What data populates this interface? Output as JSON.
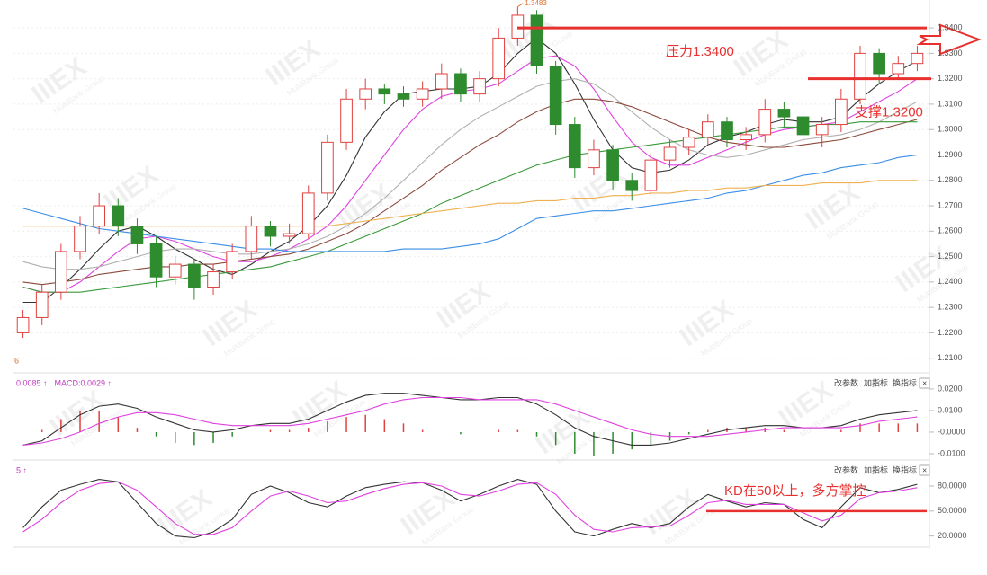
{
  "chart_data": [
    {
      "type": "candlestick",
      "corner_label": "6",
      "max_label": "1.3483",
      "up_color": "#e0403f",
      "down_color": "#2e8b2e",
      "grid": true,
      "ylim": [
        1.206,
        1.351
      ],
      "yticks": [
        {
          "value": 1.34,
          "label": "1.3400"
        },
        {
          "value": 1.33,
          "label": "1.3300"
        },
        {
          "value": 1.32,
          "label": "1.3200"
        },
        {
          "value": 1.31,
          "label": "1.3100"
        },
        {
          "value": 1.3,
          "label": "1.3000"
        },
        {
          "value": 1.29,
          "label": "1.2900"
        },
        {
          "value": 1.28,
          "label": "1.2800"
        },
        {
          "value": 1.27,
          "label": "1.2700"
        },
        {
          "value": 1.26,
          "label": "1.2600"
        },
        {
          "value": 1.25,
          "label": "1.2500"
        },
        {
          "value": 1.24,
          "label": "1.2400"
        },
        {
          "value": 1.23,
          "label": "1.2300"
        },
        {
          "value": 1.22,
          "label": "1.2200"
        },
        {
          "value": 1.21,
          "label": "1.2100"
        }
      ],
      "open": [
        1.22,
        1.226,
        1.236,
        1.252,
        1.262,
        1.27,
        1.262,
        1.255,
        1.242,
        1.247,
        1.238,
        1.244,
        1.252,
        1.262,
        1.258,
        1.259,
        1.275,
        1.295,
        1.312,
        1.316,
        1.314,
        1.312,
        1.316,
        1.322,
        1.314,
        1.32,
        1.336,
        1.345,
        1.325,
        1.302,
        1.285,
        1.292,
        1.28,
        1.276,
        1.288,
        1.293,
        1.297,
        1.303,
        1.296,
        1.298,
        1.308,
        1.305,
        1.298,
        1.302,
        1.312,
        1.33,
        1.322,
        1.326
      ],
      "high": [
        1.229,
        1.239,
        1.255,
        1.266,
        1.275,
        1.273,
        1.265,
        1.258,
        1.25,
        1.249,
        1.247,
        1.255,
        1.266,
        1.264,
        1.263,
        1.278,
        1.298,
        1.316,
        1.32,
        1.318,
        1.317,
        1.319,
        1.326,
        1.324,
        1.323,
        1.34,
        1.3483,
        1.347,
        1.327,
        1.305,
        1.296,
        1.294,
        1.283,
        1.291,
        1.296,
        1.3,
        1.306,
        1.305,
        1.301,
        1.312,
        1.311,
        1.307,
        1.305,
        1.316,
        1.333,
        1.332,
        1.329,
        1.333
      ],
      "low": [
        1.218,
        1.223,
        1.233,
        1.249,
        1.259,
        1.258,
        1.251,
        1.238,
        1.239,
        1.233,
        1.235,
        1.241,
        1.249,
        1.254,
        1.255,
        1.257,
        1.272,
        1.292,
        1.308,
        1.31,
        1.309,
        1.309,
        1.312,
        1.311,
        1.311,
        1.317,
        1.333,
        1.322,
        1.298,
        1.281,
        1.282,
        1.276,
        1.272,
        1.274,
        1.285,
        1.29,
        1.294,
        1.293,
        1.292,
        1.295,
        1.301,
        1.295,
        1.293,
        1.299,
        1.31,
        1.318,
        1.32,
        1.323
      ],
      "close": [
        1.226,
        1.236,
        1.252,
        1.262,
        1.27,
        1.262,
        1.255,
        1.242,
        1.247,
        1.238,
        1.244,
        1.252,
        1.262,
        1.258,
        1.259,
        1.275,
        1.295,
        1.312,
        1.316,
        1.314,
        1.312,
        1.316,
        1.322,
        1.314,
        1.32,
        1.336,
        1.345,
        1.325,
        1.302,
        1.285,
        1.292,
        1.28,
        1.276,
        1.288,
        1.293,
        1.297,
        1.303,
        1.296,
        1.298,
        1.308,
        1.305,
        1.298,
        1.302,
        1.312,
        1.33,
        1.322,
        1.326,
        1.33
      ],
      "series": [
        {
          "color": "#333333",
          "values": [
            1.232,
            1.232,
            1.238,
            1.245,
            1.253,
            1.26,
            1.262,
            1.258,
            1.253,
            1.249,
            1.245,
            1.243,
            1.247,
            1.252,
            1.256,
            1.262,
            1.27,
            1.282,
            1.297,
            1.307,
            1.314,
            1.315,
            1.316,
            1.316,
            1.317,
            1.322,
            1.33,
            1.336,
            1.33,
            1.318,
            1.304,
            1.292,
            1.285,
            1.283,
            1.284,
            1.288,
            1.294,
            1.297,
            1.299,
            1.302,
            1.304,
            1.303,
            1.303,
            1.305,
            1.312,
            1.318,
            1.323,
            1.327
          ]
        },
        {
          "color": "#e040e0",
          "values": [
            1.238,
            1.236,
            1.236,
            1.24,
            1.246,
            1.252,
            1.257,
            1.258,
            1.256,
            1.253,
            1.25,
            1.248,
            1.248,
            1.25,
            1.253,
            1.257,
            1.262,
            1.27,
            1.28,
            1.29,
            1.3,
            1.308,
            1.313,
            1.315,
            1.316,
            1.318,
            1.323,
            1.328,
            1.329,
            1.325,
            1.316,
            1.305,
            1.295,
            1.289,
            1.286,
            1.286,
            1.289,
            1.292,
            1.295,
            1.298,
            1.3,
            1.301,
            1.302,
            1.303,
            1.307,
            1.311,
            1.315,
            1.32
          ]
        },
        {
          "color": "#b0b0b0",
          "values": [
            1.248,
            1.246,
            1.245,
            1.245,
            1.246,
            1.248,
            1.25,
            1.252,
            1.253,
            1.253,
            1.252,
            1.251,
            1.251,
            1.252,
            1.253,
            1.255,
            1.258,
            1.262,
            1.267,
            1.273,
            1.28,
            1.287,
            1.294,
            1.3,
            1.305,
            1.309,
            1.313,
            1.317,
            1.319,
            1.32,
            1.318,
            1.313,
            1.307,
            1.301,
            1.296,
            1.292,
            1.29,
            1.289,
            1.29,
            1.292,
            1.294,
            1.296,
            1.297,
            1.298,
            1.3,
            1.303,
            1.307,
            1.311
          ]
        },
        {
          "color": "#8b4a3c",
          "values": [
            1.24,
            1.239,
            1.24,
            1.241,
            1.243,
            1.244,
            1.245,
            1.246,
            1.246,
            1.247,
            1.247,
            1.248,
            1.249,
            1.25,
            1.251,
            1.253,
            1.256,
            1.259,
            1.263,
            1.268,
            1.273,
            1.278,
            1.284,
            1.289,
            1.294,
            1.298,
            1.303,
            1.307,
            1.31,
            1.312,
            1.312,
            1.311,
            1.309,
            1.306,
            1.303,
            1.3,
            1.297,
            1.295,
            1.294,
            1.293,
            1.293,
            1.294,
            1.295,
            1.296,
            1.298,
            1.3,
            1.302,
            1.304
          ]
        },
        {
          "color": "#3a9a3a",
          "values": [
            1.238,
            1.236,
            1.236,
            1.236,
            1.237,
            1.238,
            1.239,
            1.24,
            1.241,
            1.242,
            1.243,
            1.244,
            1.245,
            1.246,
            1.248,
            1.25,
            1.252,
            1.255,
            1.258,
            1.261,
            1.264,
            1.267,
            1.271,
            1.274,
            1.277,
            1.28,
            1.283,
            1.286,
            1.288,
            1.29,
            1.291,
            1.292,
            1.293,
            1.294,
            1.295,
            1.296,
            1.297,
            1.298,
            1.299,
            1.3,
            1.301,
            1.301,
            1.302,
            1.302,
            1.303,
            1.303,
            1.303,
            1.303
          ]
        },
        {
          "color": "#3a8ee6",
          "values": [
            1.269,
            1.267,
            1.265,
            1.263,
            1.261,
            1.26,
            1.259,
            1.258,
            1.257,
            1.256,
            1.255,
            1.254,
            1.253,
            1.253,
            1.252,
            1.252,
            1.252,
            1.252,
            1.252,
            1.252,
            1.253,
            1.253,
            1.253,
            1.254,
            1.255,
            1.257,
            1.261,
            1.265,
            1.266,
            1.267,
            1.268,
            1.268,
            1.269,
            1.27,
            1.271,
            1.272,
            1.273,
            1.275,
            1.276,
            1.278,
            1.28,
            1.282,
            1.283,
            1.285,
            1.286,
            1.287,
            1.289,
            1.29
          ]
        },
        {
          "color": "#f0b050",
          "values": [
            1.262,
            1.262,
            1.262,
            1.262,
            1.262,
            1.262,
            1.262,
            1.262,
            1.262,
            1.262,
            1.262,
            1.262,
            1.262,
            1.262,
            1.262,
            1.262,
            1.262,
            1.263,
            1.264,
            1.265,
            1.266,
            1.267,
            1.268,
            1.269,
            1.27,
            1.271,
            1.271,
            1.272,
            1.272,
            1.273,
            1.273,
            1.274,
            1.274,
            1.275,
            1.275,
            1.276,
            1.276,
            1.277,
            1.277,
            1.278,
            1.278,
            1.278,
            1.279,
            1.279,
            1.279,
            1.28,
            1.28,
            1.28
          ]
        }
      ],
      "resistance": {
        "value": 1.34,
        "label": "压力1.3400",
        "color": "#e8312f"
      },
      "support": {
        "value": 1.32,
        "label": "支撑1.3200",
        "color": "#e8312f"
      }
    },
    {
      "type": "macd",
      "header": [
        "0.0085 ↑",
        "MACD:0.0029 ↑"
      ],
      "buttons": [
        "改参数",
        "加指标",
        "换指标",
        "×"
      ],
      "ylim": [
        -0.0121,
        0.0233
      ],
      "yticks": [
        {
          "value": 0.02,
          "label": "0.0200"
        },
        {
          "value": 0.01,
          "label": "0.0100"
        },
        {
          "value": 0,
          "label": "-0.0000"
        },
        {
          "value": -0.01,
          "label": "-0.0100"
        }
      ],
      "series": [
        {
          "color": "#333333",
          "values": [
            -0.006,
            -0.004,
            0.002,
            0.008,
            0.012,
            0.013,
            0.011,
            0.007,
            0.004,
            0.001,
            0.0,
            0.001,
            0.003,
            0.004,
            0.004,
            0.006,
            0.01,
            0.014,
            0.017,
            0.018,
            0.018,
            0.017,
            0.016,
            0.015,
            0.015,
            0.016,
            0.016,
            0.013,
            0.008,
            0.002,
            -0.002,
            -0.004,
            -0.006,
            -0.006,
            -0.005,
            -0.003,
            -0.001,
            0.001,
            0.002,
            0.003,
            0.003,
            0.002,
            0.002,
            0.003,
            0.006,
            0.008,
            0.009,
            0.01
          ]
        },
        {
          "color": "#e040e0",
          "values": [
            -0.006,
            -0.005,
            -0.003,
            0.0,
            0.004,
            0.007,
            0.009,
            0.009,
            0.008,
            0.006,
            0.004,
            0.003,
            0.003,
            0.003,
            0.003,
            0.004,
            0.006,
            0.008,
            0.01,
            0.013,
            0.015,
            0.016,
            0.016,
            0.016,
            0.015,
            0.015,
            0.015,
            0.015,
            0.013,
            0.01,
            0.007,
            0.004,
            0.001,
            -0.001,
            -0.002,
            -0.002,
            -0.002,
            -0.001,
            0.0,
            0.001,
            0.002,
            0.002,
            0.002,
            0.002,
            0.003,
            0.005,
            0.006,
            0.007
          ]
        }
      ],
      "histogram": {
        "up_color": "#e0403f",
        "down_color": "#2e8b2e",
        "values": [
          0,
          0.001,
          0.006,
          0.01,
          0.01,
          0.007,
          0.002,
          -0.002,
          -0.005,
          -0.006,
          -0.005,
          -0.002,
          0,
          0.001,
          0.001,
          0.002,
          0.005,
          0.007,
          0.008,
          0.006,
          0.004,
          0.001,
          0,
          -0.001,
          0,
          0.001,
          0.001,
          -0.002,
          -0.006,
          -0.01,
          -0.011,
          -0.01,
          -0.008,
          -0.006,
          -0.004,
          -0.001,
          0.001,
          0.002,
          0.002,
          0.002,
          0.001,
          0,
          0,
          0.001,
          0.004,
          0.004,
          0.004,
          0.004
        ]
      }
    },
    {
      "type": "line",
      "header": [
        "5 ↑"
      ],
      "buttons": [
        "改参数",
        "加指标",
        "换指标",
        "×"
      ],
      "ylim": [
        11,
        108
      ],
      "yticks": [
        {
          "value": 80,
          "label": "80.0000"
        },
        {
          "value": 50,
          "label": "50.0000"
        },
        {
          "value": 20,
          "label": "20.0000"
        }
      ],
      "series": [
        {
          "color": "#333333",
          "values": [
            30,
            55,
            75,
            82,
            88,
            85,
            60,
            35,
            20,
            18,
            25,
            40,
            70,
            80,
            72,
            60,
            55,
            68,
            78,
            82,
            85,
            84,
            75,
            62,
            70,
            80,
            88,
            82,
            50,
            25,
            20,
            28,
            35,
            30,
            35,
            55,
            70,
            62,
            55,
            60,
            58,
            40,
            30,
            55,
            78,
            72,
            76,
            82
          ]
        },
        {
          "color": "#e040e0",
          "values": [
            25,
            40,
            60,
            75,
            83,
            85,
            75,
            55,
            35,
            22,
            22,
            30,
            50,
            68,
            74,
            68,
            60,
            62,
            70,
            77,
            82,
            84,
            80,
            70,
            68,
            74,
            82,
            84,
            70,
            45,
            28,
            25,
            30,
            31,
            32,
            45,
            60,
            63,
            58,
            58,
            58,
            48,
            38,
            45,
            65,
            72,
            74,
            78
          ]
        }
      ],
      "reference": {
        "value": 50,
        "label": "KD在50以上，多方掌控",
        "color": "#e8312f"
      }
    }
  ],
  "watermark": {
    "brand": "IIIEX",
    "sub": "MultiBank Group"
  }
}
